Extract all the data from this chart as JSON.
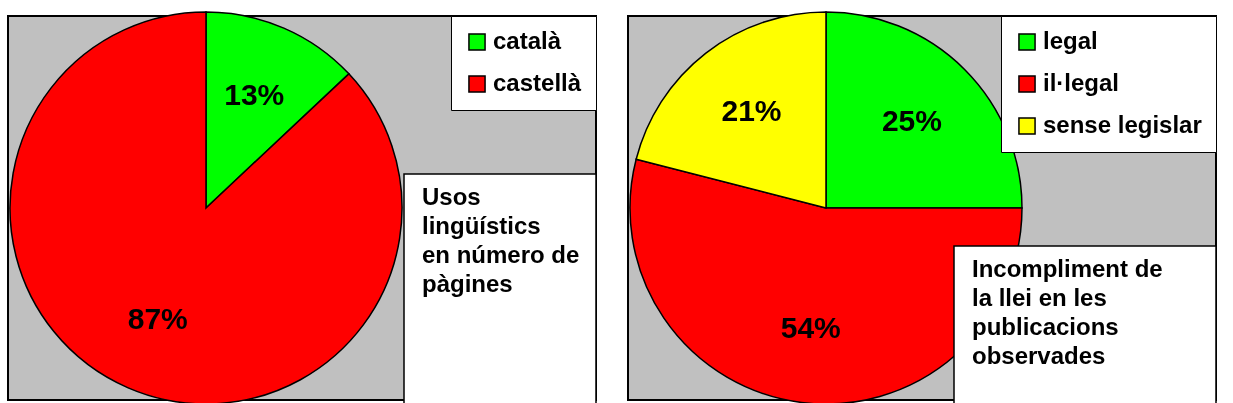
{
  "chart_data": [
    {
      "type": "pie",
      "title": "Usos lingüístics en número de pàgines",
      "categories": [
        "català",
        "castellà"
      ],
      "values": [
        13,
        87
      ],
      "value_labels": [
        "13%",
        "87%"
      ],
      "colors": [
        "#00ff00",
        "#ff0000"
      ],
      "legend": "top right"
    },
    {
      "type": "pie",
      "title": "Incompliment de la llei en les publicacions observades",
      "categories": [
        "legal",
        "il·legal",
        "sense legislar"
      ],
      "values": [
        25,
        54,
        21
      ],
      "value_labels": [
        "25%",
        "54%",
        "21%"
      ],
      "colors": [
        "#00ff00",
        "#ff0000",
        "#ffff00"
      ],
      "legend": "top right"
    }
  ]
}
